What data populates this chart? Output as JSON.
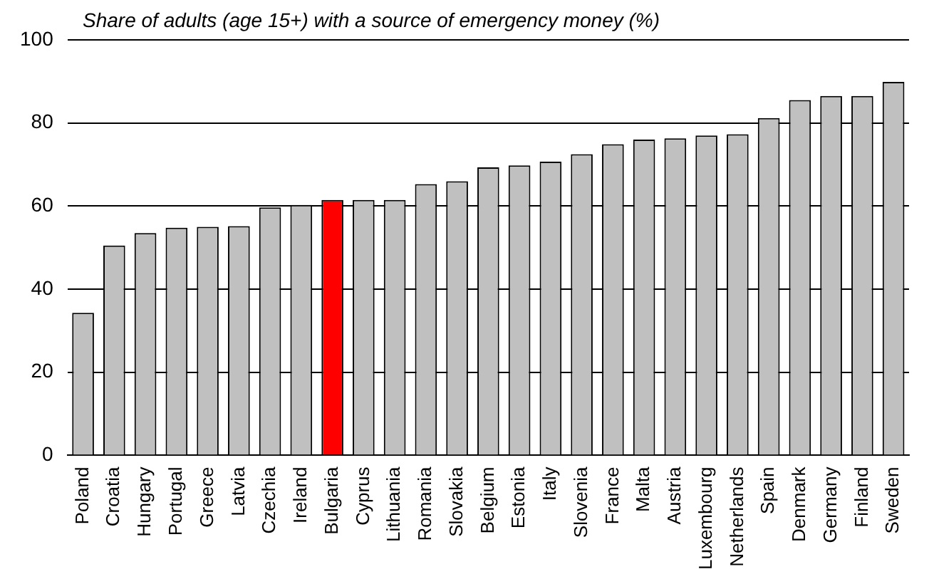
{
  "chart_data": {
    "type": "bar",
    "title": "Share of adults (age 15+) with a source of emergency money (%)",
    "categories": [
      "Poland",
      "Croatia",
      "Hungary",
      "Portugal",
      "Greece",
      "Latvia",
      "Czechia",
      "Ireland",
      "Bulgaria",
      "Cyprus",
      "Lithuania",
      "Romania",
      "Slovakia",
      "Belgium",
      "Estonia",
      "Italy",
      "Slovenia",
      "France",
      "Malta",
      "Austria",
      "Luxembourg",
      "Netherlands",
      "Spain",
      "Denmark",
      "Germany",
      "Finland",
      "Sweden"
    ],
    "values": [
      34.3,
      50.5,
      53.5,
      54.8,
      55,
      55.2,
      59.7,
      60.3,
      61.5,
      61.5,
      61.5,
      65.3,
      66,
      69.3,
      69.8,
      70.7,
      72.5,
      74.9,
      76,
      76.3,
      77,
      77.3,
      81.2,
      85.5,
      86.5,
      86.5,
      89.9
    ],
    "colors": [
      "#c0c0c0",
      "#c0c0c0",
      "#c0c0c0",
      "#c0c0c0",
      "#c0c0c0",
      "#c0c0c0",
      "#c0c0c0",
      "#c0c0c0",
      "#ff0000",
      "#c0c0c0",
      "#c0c0c0",
      "#c0c0c0",
      "#c0c0c0",
      "#c0c0c0",
      "#c0c0c0",
      "#c0c0c0",
      "#c0c0c0",
      "#c0c0c0",
      "#c0c0c0",
      "#c0c0c0",
      "#c0c0c0",
      "#c0c0c0",
      "#c0c0c0",
      "#c0c0c0",
      "#c0c0c0",
      "#c0c0c0",
      "#c0c0c0"
    ],
    "ylim": [
      0,
      100
    ],
    "yticks": [
      0,
      20,
      40,
      60,
      80,
      100
    ],
    "grid": "y",
    "legend": false
  }
}
